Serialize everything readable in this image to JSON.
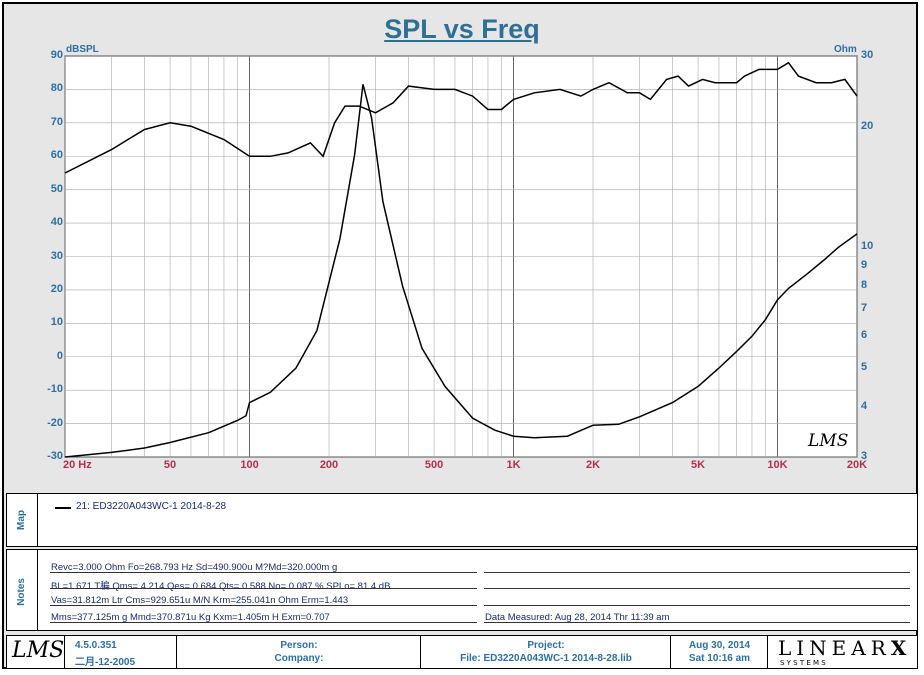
{
  "title": "SPL vs Freq",
  "chart_data": {
    "type": "line",
    "title": "SPL vs Freq",
    "x_scale": "log",
    "xlim": [
      20,
      20000
    ],
    "x_ticks": [
      {
        "v": 20,
        "label": "20  Hz"
      },
      {
        "v": 50,
        "label": "50"
      },
      {
        "v": 100,
        "label": "100"
      },
      {
        "v": 200,
        "label": "200"
      },
      {
        "v": 500,
        "label": "500"
      },
      {
        "v": 1000,
        "label": "1K"
      },
      {
        "v": 2000,
        "label": "2K"
      },
      {
        "v": 5000,
        "label": "5K"
      },
      {
        "v": 10000,
        "label": "10K"
      },
      {
        "v": 20000,
        "label": "20K"
      }
    ],
    "ylabel": "dBSPL",
    "ylim": [
      -30,
      90
    ],
    "y_ticks": [
      90,
      80,
      70,
      60,
      50,
      40,
      30,
      20,
      10,
      0,
      -10,
      -20,
      -30
    ],
    "y2label": "Ohm",
    "y2_scale": "log",
    "y2lim": [
      3,
      30
    ],
    "y2_ticks": [
      {
        "v": 30,
        "label": "30"
      },
      {
        "v": 20,
        "label": "20"
      },
      {
        "v": 10,
        "label": "10"
      },
      {
        "v": 9,
        "label": "9"
      },
      {
        "v": 8,
        "label": "8"
      },
      {
        "v": 7,
        "label": "7"
      },
      {
        "v": 6,
        "label": "6"
      },
      {
        "v": 5,
        "label": "5"
      },
      {
        "v": 4,
        "label": "4"
      },
      {
        "v": 3,
        "label": "3"
      }
    ],
    "grid": true,
    "series": [
      {
        "name": "SPL",
        "axis": "left",
        "points": [
          [
            20,
            55
          ],
          [
            30,
            62
          ],
          [
            40,
            68
          ],
          [
            50,
            70
          ],
          [
            60,
            69
          ],
          [
            80,
            65
          ],
          [
            100,
            60
          ],
          [
            120,
            60
          ],
          [
            140,
            61
          ],
          [
            170,
            64
          ],
          [
            190,
            60
          ],
          [
            210,
            70
          ],
          [
            230,
            75
          ],
          [
            260,
            75
          ],
          [
            300,
            73
          ],
          [
            350,
            76
          ],
          [
            400,
            81
          ],
          [
            500,
            80
          ],
          [
            600,
            80
          ],
          [
            700,
            78
          ],
          [
            800,
            74
          ],
          [
            900,
            74
          ],
          [
            1000,
            77
          ],
          [
            1200,
            79
          ],
          [
            1500,
            80
          ],
          [
            1800,
            78
          ],
          [
            2000,
            80
          ],
          [
            2300,
            82
          ],
          [
            2700,
            79
          ],
          [
            3000,
            79
          ],
          [
            3300,
            77
          ],
          [
            3800,
            83
          ],
          [
            4200,
            84
          ],
          [
            4600,
            81
          ],
          [
            5200,
            83
          ],
          [
            5800,
            82
          ],
          [
            6500,
            82
          ],
          [
            7000,
            82
          ],
          [
            7500,
            84
          ],
          [
            8500,
            86
          ],
          [
            10000,
            86
          ],
          [
            11000,
            88
          ],
          [
            12000,
            84
          ],
          [
            14000,
            82
          ],
          [
            16000,
            82
          ],
          [
            18000,
            83
          ],
          [
            20000,
            78
          ]
        ]
      },
      {
        "name": "Impedance",
        "axis": "right",
        "points": [
          [
            20,
            3.0
          ],
          [
            30,
            3.08
          ],
          [
            40,
            3.16
          ],
          [
            50,
            3.26
          ],
          [
            70,
            3.45
          ],
          [
            90,
            3.7
          ],
          [
            97,
            3.8
          ],
          [
            100,
            4.1
          ],
          [
            120,
            4.35
          ],
          [
            150,
            5.0
          ],
          [
            180,
            6.2
          ],
          [
            220,
            10.5
          ],
          [
            250,
            17.0
          ],
          [
            269,
            25.5
          ],
          [
            290,
            21.0
          ],
          [
            320,
            13.0
          ],
          [
            380,
            8.0
          ],
          [
            450,
            5.6
          ],
          [
            550,
            4.5
          ],
          [
            700,
            3.75
          ],
          [
            850,
            3.5
          ],
          [
            1000,
            3.38
          ],
          [
            1200,
            3.35
          ],
          [
            1600,
            3.38
          ],
          [
            2000,
            3.6
          ],
          [
            2500,
            3.62
          ],
          [
            3000,
            3.78
          ],
          [
            4000,
            4.1
          ],
          [
            5000,
            4.5
          ],
          [
            6000,
            5.0
          ],
          [
            7000,
            5.5
          ],
          [
            8000,
            6.0
          ],
          [
            9000,
            6.6
          ],
          [
            10000,
            7.4
          ],
          [
            11000,
            7.9
          ],
          [
            13000,
            8.6
          ],
          [
            15000,
            9.3
          ],
          [
            17000,
            10.0
          ],
          [
            20000,
            10.8
          ]
        ]
      }
    ]
  },
  "watermark": "LMS",
  "map": {
    "label": "Map",
    "legend_text": "21: ED3220A043WC-1   2014-8-28"
  },
  "notes": {
    "label": "Notes",
    "lines": [
      "Revc=3.000 Ohm  Fo=268.793 Hz  Sd=490.900u M?Md=320.000m g",
      "BL=1.671 T稨  Qms= 4.214  Qes= 0.684  Qts= 0.588  No= 0.087 %  SPLo= 81.4 dB",
      "Vas=31.812m Ltr  Cms=929.651u M/N  Krm=255.041n Ohm  Erm=1.443",
      "Mms=377.125m g  Mmd=370.871u Kg  Kxm=1.405m H  Exm=0.707"
    ],
    "measured": "Data Measured: Aug 28, 2014  Thr 11:39 am"
  },
  "footer": {
    "logo": "LMS",
    "version": "4.5.0.351",
    "build_date": "二月-12-2005",
    "person_label": "Person:",
    "company_label": "Company:",
    "project_label": "Project:",
    "file_label": "File: ED3220A043WC-1   2014-8-28.lib",
    "date": "Aug 30, 2014",
    "time": "Sat 10:16 am",
    "brand": "LINEAR",
    "brand_x": "X",
    "brand_sub": "S  Y  S  T  E  M  S"
  }
}
